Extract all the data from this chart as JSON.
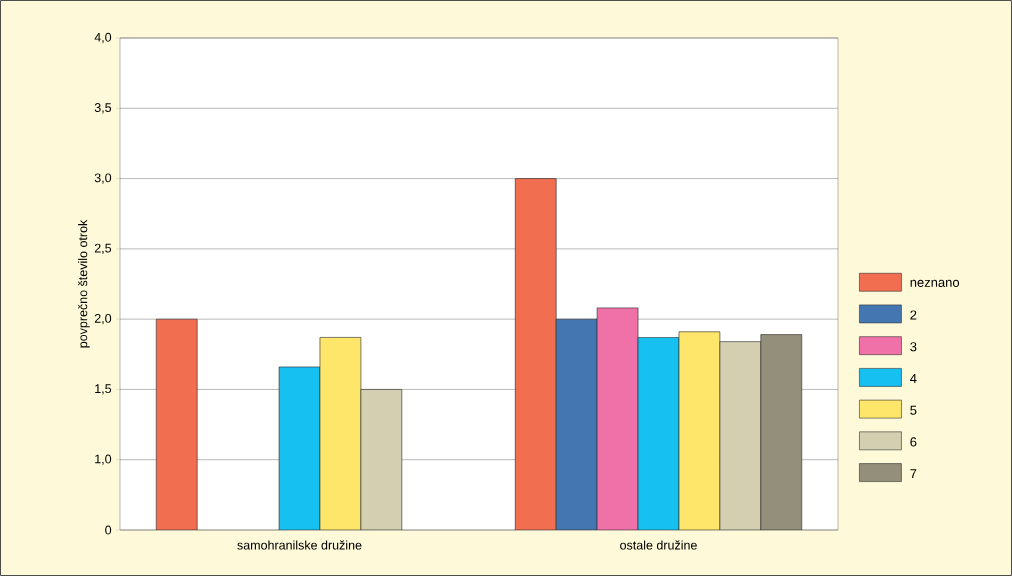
{
  "chart_data": {
    "type": "bar",
    "ylabel": "povprečno število otrok",
    "categories": [
      "samohranilske družine",
      "ostale družine"
    ],
    "series": [
      {
        "name": "neznano",
        "color": "#f26e50",
        "values": [
          2.0,
          3.0
        ]
      },
      {
        "name": "2",
        "color": "#4477b2",
        "values": [
          null,
          2.0
        ]
      },
      {
        "name": "3",
        "color": "#f070a8",
        "values": [
          null,
          2.08
        ]
      },
      {
        "name": "4",
        "color": "#16c0f0",
        "values": [
          1.66,
          1.87
        ]
      },
      {
        "name": "5",
        "color": "#fee66a",
        "values": [
          1.87,
          1.91
        ]
      },
      {
        "name": "6",
        "color": "#d3cfb0",
        "values": [
          1.5,
          1.84
        ]
      },
      {
        "name": "7",
        "color": "#948f7b",
        "values": [
          null,
          1.89
        ]
      }
    ],
    "ylim": [
      0.5,
      4.0
    ],
    "yticks": [
      {
        "value": 0.5,
        "label": "0"
      },
      {
        "value": 1.0,
        "label": "1,0"
      },
      {
        "value": 1.5,
        "label": "1,5"
      },
      {
        "value": 2.0,
        "label": "2,0"
      },
      {
        "value": 2.5,
        "label": "2,5"
      },
      {
        "value": 3.0,
        "label": "3,0"
      },
      {
        "value": 3.5,
        "label": "3,5"
      },
      {
        "value": 4.0,
        "label": "4,0"
      }
    ],
    "grid": "y",
    "legend": "right"
  }
}
